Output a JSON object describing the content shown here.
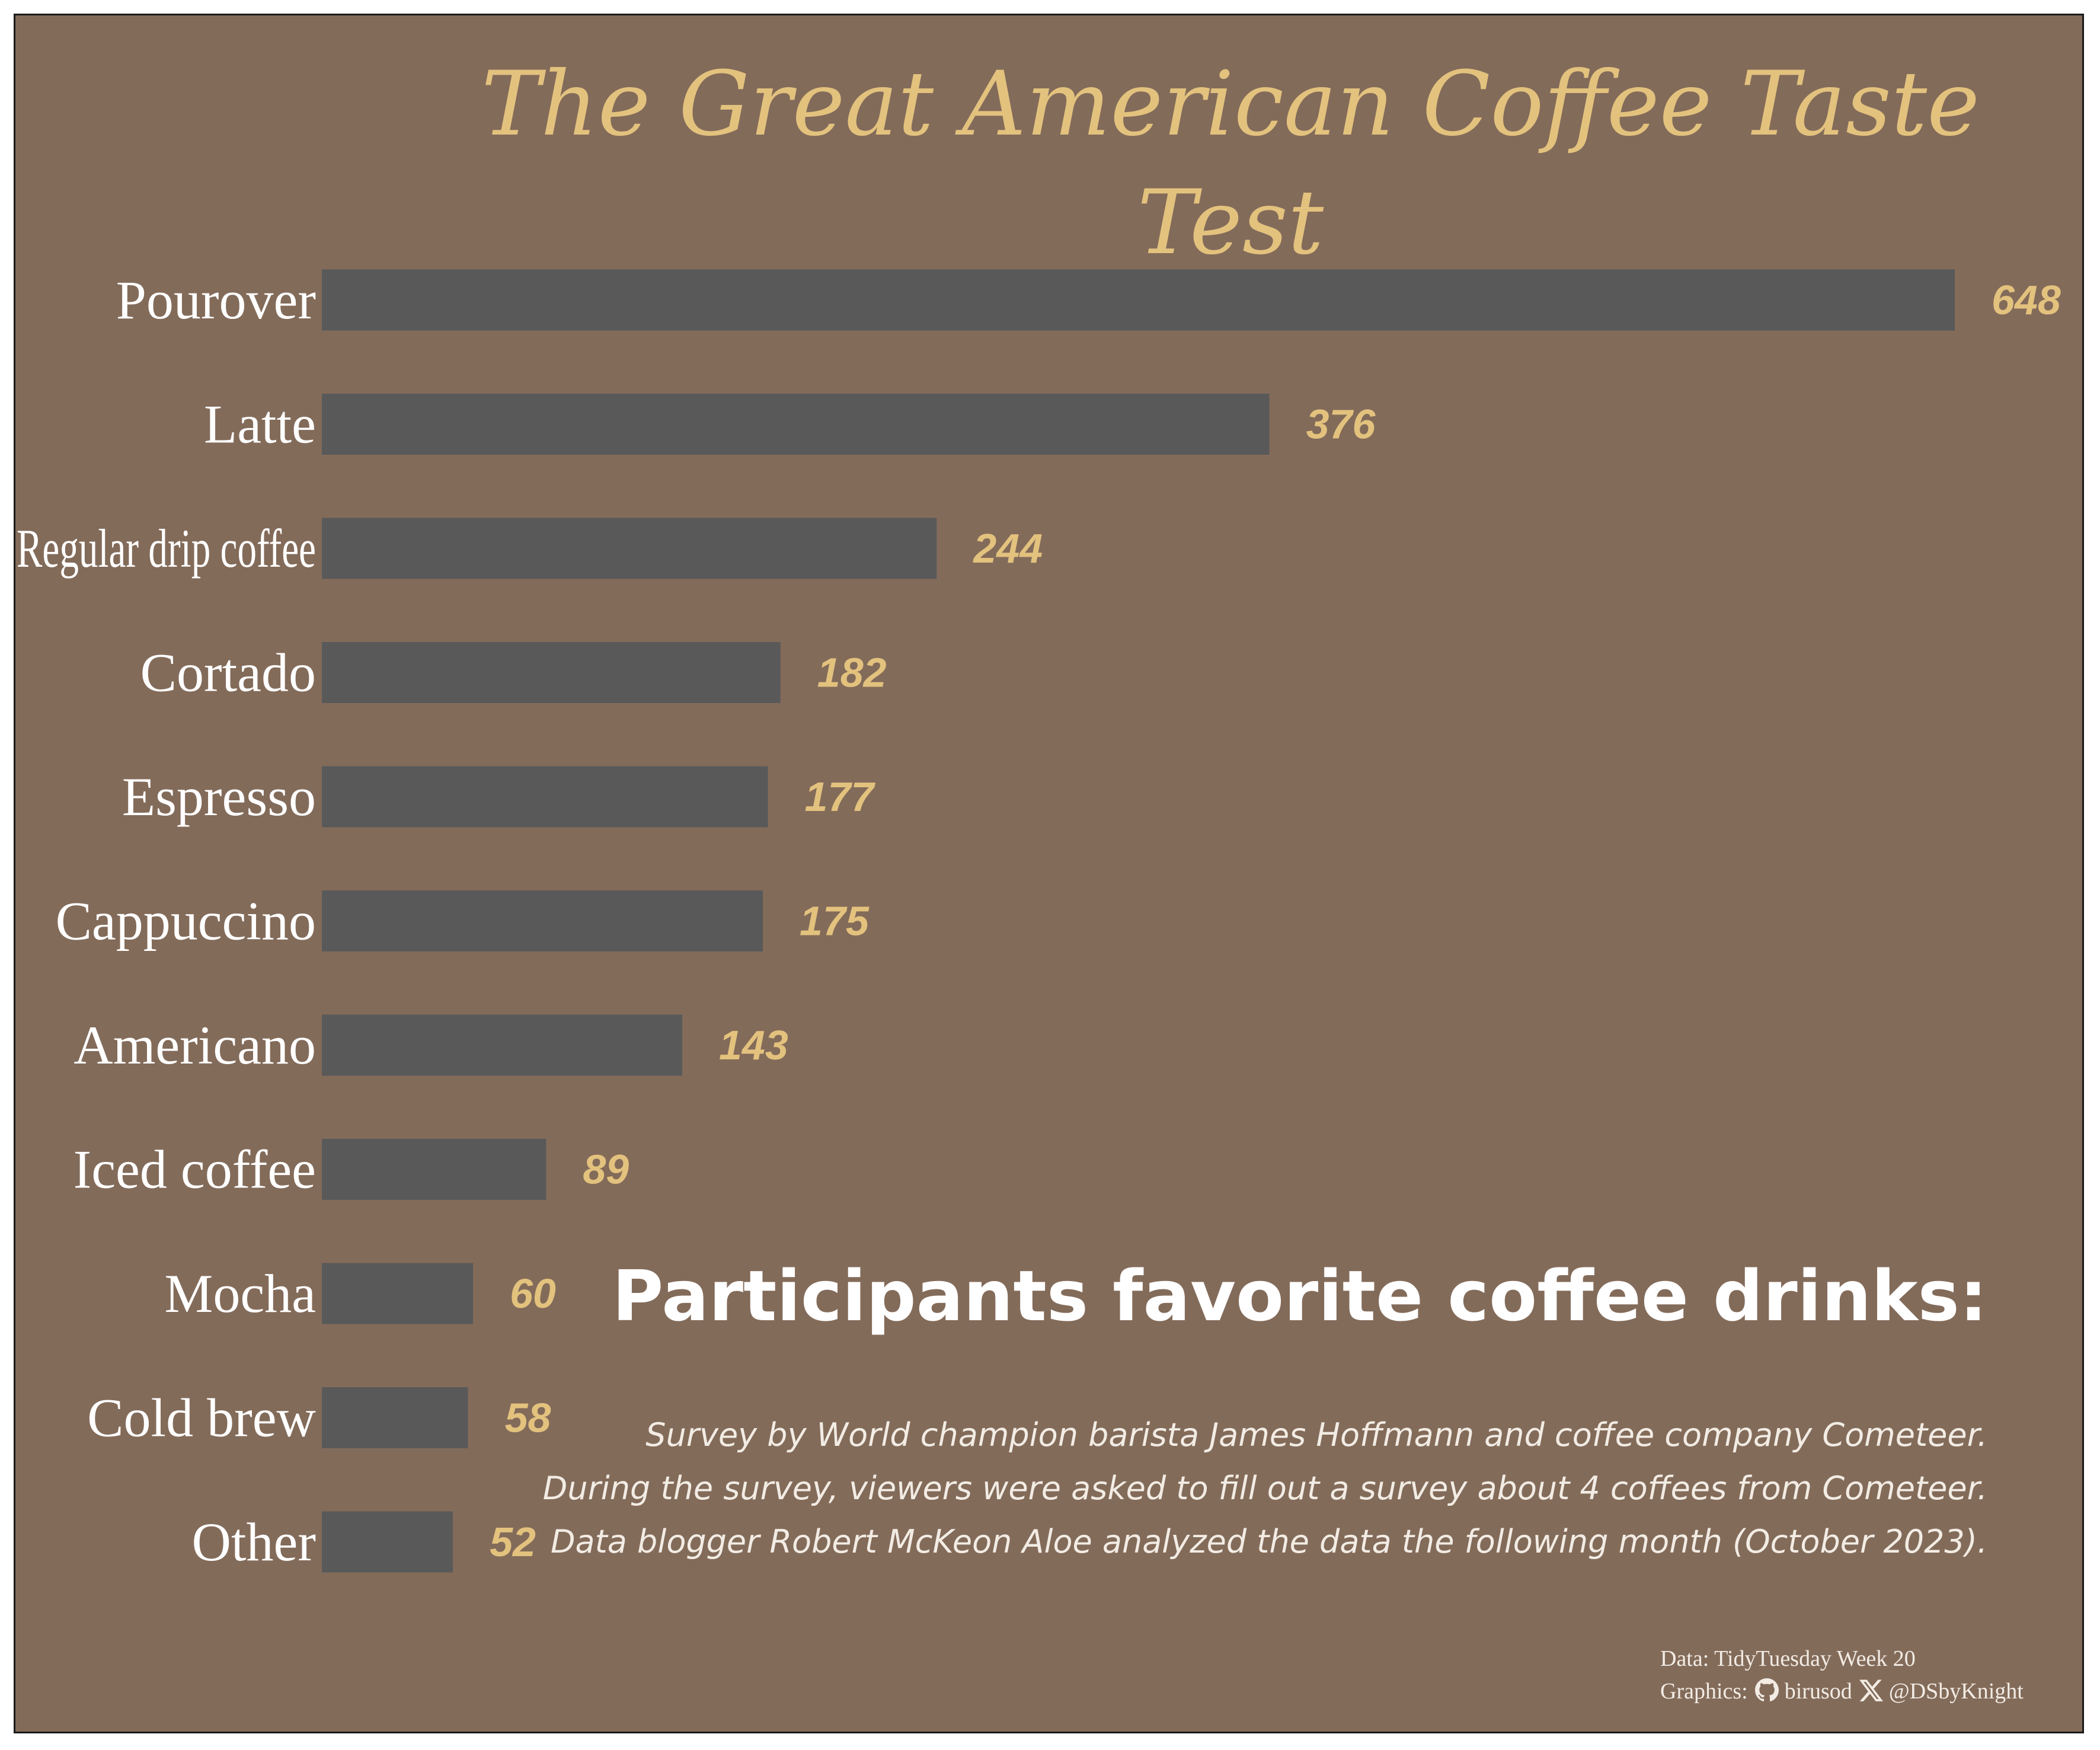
{
  "title": "The Great American Coffee Taste Test",
  "subtitle": "Participants favorite coffee drinks:",
  "description": [
    "Survey by World champion barista James Hoffmann and coffee company Cometeer.",
    "During the survey, viewers were asked to fill out a survey about 4 coffees from Cometeer.",
    "Data blogger Robert McKeon Aloe analyzed the data the following month (October 2023)."
  ],
  "caption": {
    "data_line": "Data: TidyTuesday Week 20",
    "graphics_label": "Graphics:",
    "github_handle": "birusod",
    "x_handle": "@DSbyKnight",
    "github_icon": "github-icon",
    "x_icon": "x-icon"
  },
  "colors": {
    "background": "#836b5a",
    "bar": "#595959",
    "value_label": "#e3c27e",
    "title": "#e3c27e",
    "text": "#ffffff"
  },
  "chart_data": {
    "type": "bar",
    "orientation": "horizontal",
    "categories": [
      "Pourover",
      "Latte",
      "Regular drip coffee",
      "Cortado",
      "Espresso",
      "Cappuccino",
      "Americano",
      "Iced coffee",
      "Mocha",
      "Cold brew",
      "Other"
    ],
    "values": [
      648,
      376,
      244,
      182,
      177,
      175,
      143,
      89,
      60,
      58,
      52
    ],
    "title": "The Great American Coffee Taste Test",
    "xlabel": "",
    "ylabel": "",
    "xlim": [
      0,
      648
    ],
    "grid": false,
    "legend": "none"
  }
}
